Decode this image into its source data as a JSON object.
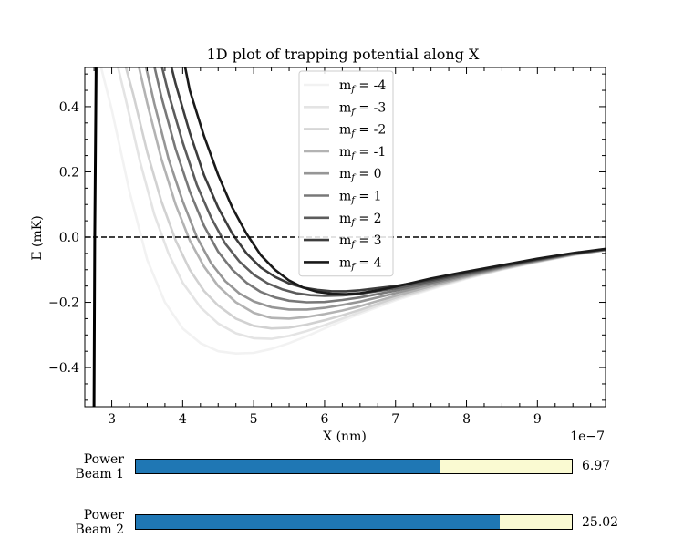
{
  "chart_data": {
    "type": "line",
    "title": "1D plot of trapping potential along X",
    "xlabel": "X (nm)",
    "ylabel": "E (mK)",
    "x_offset_label": "1e−7",
    "xlim": [
      2.62,
      9.96
    ],
    "ylim": [
      -0.52,
      0.52
    ],
    "xticks": [
      "3",
      "4",
      "5",
      "6",
      "7",
      "8",
      "9"
    ],
    "xtick_values": [
      3,
      4,
      5,
      6,
      7,
      8,
      9
    ],
    "yticks": [
      "−0.4",
      "−0.2",
      "0.0",
      "0.2",
      "0.4"
    ],
    "ytick_values": [
      -0.4,
      -0.2,
      0.0,
      0.2,
      0.4
    ],
    "zero_line": {
      "y": 0.0,
      "style": "dashed",
      "color": "#000000"
    },
    "legend_position": "top-center",
    "series": [
      {
        "name": "m$_f$ = -4",
        "label": "m",
        "sub": "f",
        "suffix": " = -4",
        "color": "#f2f2f2",
        "x": [
          2.73,
          2.85,
          3.0,
          3.25,
          3.5,
          3.75,
          4.0,
          4.25,
          4.5,
          4.75,
          5.0,
          5.25,
          5.5,
          5.75,
          6.0,
          6.25,
          6.5,
          7.0,
          7.5,
          8.0,
          8.5,
          9.0,
          9.5,
          9.96
        ],
        "y": [
          0.6,
          0.52,
          0.39,
          0.14,
          -0.07,
          -0.2,
          -0.28,
          -0.325,
          -0.35,
          -0.357,
          -0.355,
          -0.343,
          -0.325,
          -0.304,
          -0.28,
          -0.257,
          -0.235,
          -0.194,
          -0.16,
          -0.128,
          -0.1,
          -0.077,
          -0.056,
          -0.04
        ]
      },
      {
        "name": "m$_f$ = -3",
        "label": "m",
        "sub": "f",
        "suffix": " = -3",
        "color": "#e4e4e4",
        "x": [
          2.73,
          3.0,
          3.2,
          3.4,
          3.6,
          3.8,
          4.0,
          4.25,
          4.5,
          4.75,
          5.0,
          5.25,
          5.5,
          5.75,
          6.0,
          6.25,
          6.5,
          7.0,
          7.5,
          8.0,
          8.5,
          9.0,
          9.5,
          9.96
        ],
        "y": [
          0.6,
          0.6,
          0.42,
          0.23,
          0.07,
          -0.05,
          -0.14,
          -0.215,
          -0.265,
          -0.295,
          -0.31,
          -0.312,
          -0.303,
          -0.288,
          -0.27,
          -0.25,
          -0.23,
          -0.19,
          -0.157,
          -0.126,
          -0.099,
          -0.076,
          -0.055,
          -0.04
        ]
      },
      {
        "name": "m$_f$ = -2",
        "label": "m",
        "sub": "f",
        "suffix": " = -2",
        "color": "#d1d1d1",
        "x": [
          2.73,
          3.1,
          3.3,
          3.5,
          3.7,
          3.9,
          4.1,
          4.3,
          4.5,
          4.75,
          5.0,
          5.25,
          5.5,
          5.75,
          6.0,
          6.25,
          6.5,
          7.0,
          7.5,
          8.0,
          8.5,
          9.0,
          9.5,
          9.96
        ],
        "y": [
          0.6,
          0.6,
          0.44,
          0.26,
          0.11,
          -0.01,
          -0.1,
          -0.165,
          -0.21,
          -0.25,
          -0.272,
          -0.28,
          -0.278,
          -0.268,
          -0.255,
          -0.24,
          -0.223,
          -0.186,
          -0.154,
          -0.124,
          -0.098,
          -0.075,
          -0.054,
          -0.04
        ]
      },
      {
        "name": "m$_f$ = -1",
        "label": "m",
        "sub": "f",
        "suffix": " = -1",
        "color": "#b3b3b3",
        "x": [
          2.73,
          3.3,
          3.5,
          3.7,
          3.9,
          4.1,
          4.3,
          4.5,
          4.75,
          5.0,
          5.25,
          5.5,
          5.75,
          6.0,
          6.25,
          6.5,
          7.0,
          7.5,
          8.0,
          8.5,
          9.0,
          9.5,
          9.96
        ],
        "y": [
          0.6,
          0.6,
          0.41,
          0.24,
          0.1,
          -0.01,
          -0.09,
          -0.15,
          -0.2,
          -0.232,
          -0.248,
          -0.25,
          -0.245,
          -0.236,
          -0.225,
          -0.212,
          -0.18,
          -0.15,
          -0.122,
          -0.096,
          -0.074,
          -0.054,
          -0.04
        ]
      },
      {
        "name": "m$_f$ = 0",
        "label": "m",
        "sub": "f",
        "suffix": " = 0",
        "color": "#969696",
        "x": [
          2.73,
          3.4,
          3.6,
          3.8,
          4.0,
          4.2,
          4.4,
          4.6,
          4.8,
          5.0,
          5.25,
          5.5,
          5.75,
          6.0,
          6.25,
          6.5,
          7.0,
          7.5,
          8.0,
          8.5,
          9.0,
          9.5,
          9.96
        ],
        "y": [
          0.6,
          0.6,
          0.41,
          0.24,
          0.11,
          0.0,
          -0.08,
          -0.135,
          -0.173,
          -0.197,
          -0.215,
          -0.222,
          -0.222,
          -0.217,
          -0.208,
          -0.198,
          -0.172,
          -0.145,
          -0.119,
          -0.094,
          -0.073,
          -0.053,
          -0.039
        ]
      },
      {
        "name": "m$_f$ = 1",
        "label": "m",
        "sub": "f",
        "suffix": " = 1",
        "color": "#787878",
        "x": [
          2.73,
          3.52,
          3.7,
          3.9,
          4.1,
          4.3,
          4.5,
          4.7,
          4.9,
          5.1,
          5.3,
          5.5,
          5.75,
          6.0,
          6.25,
          6.5,
          7.0,
          7.5,
          8.0,
          8.5,
          9.0,
          9.5,
          9.96
        ],
        "y": [
          0.6,
          0.6,
          0.43,
          0.27,
          0.14,
          0.035,
          -0.045,
          -0.1,
          -0.14,
          -0.168,
          -0.185,
          -0.195,
          -0.2,
          -0.199,
          -0.193,
          -0.185,
          -0.164,
          -0.14,
          -0.116,
          -0.092,
          -0.071,
          -0.052,
          -0.039
        ]
      },
      {
        "name": "m$_f$ = 2",
        "label": "m",
        "sub": "f",
        "suffix": " = 2",
        "color": "#5c5c5c",
        "x": [
          2.73,
          3.62,
          3.8,
          4.0,
          4.2,
          4.4,
          4.6,
          4.8,
          5.0,
          5.2,
          5.4,
          5.6,
          5.8,
          6.0,
          6.25,
          6.5,
          7.0,
          7.5,
          8.0,
          8.5,
          9.0,
          9.5,
          9.96
        ],
        "y": [
          0.6,
          0.6,
          0.44,
          0.29,
          0.16,
          0.06,
          -0.02,
          -0.075,
          -0.115,
          -0.142,
          -0.16,
          -0.172,
          -0.178,
          -0.18,
          -0.179,
          -0.174,
          -0.157,
          -0.135,
          -0.112,
          -0.09,
          -0.07,
          -0.051,
          -0.038
        ]
      },
      {
        "name": "m$_f$ = 3",
        "label": "m",
        "sub": "f",
        "suffix": " = 3",
        "color": "#3d3d3d",
        "x": [
          2.73,
          3.75,
          3.9,
          4.1,
          4.3,
          4.5,
          4.7,
          4.9,
          5.1,
          5.3,
          5.5,
          5.7,
          5.9,
          6.1,
          6.3,
          6.5,
          7.0,
          7.5,
          8.0,
          8.5,
          9.0,
          9.5,
          9.96
        ],
        "y": [
          0.6,
          0.6,
          0.47,
          0.32,
          0.19,
          0.09,
          0.01,
          -0.05,
          -0.093,
          -0.122,
          -0.142,
          -0.155,
          -0.162,
          -0.166,
          -0.166,
          -0.163,
          -0.15,
          -0.131,
          -0.109,
          -0.088,
          -0.068,
          -0.05,
          -0.037
        ]
      },
      {
        "name": "m$_f$ = 4",
        "label": "m",
        "sub": "f",
        "suffix": " = 4",
        "color": "#1a1a1a",
        "x": [
          2.73,
          3.98,
          4.1,
          4.3,
          4.5,
          4.7,
          4.9,
          5.1,
          5.3,
          5.5,
          5.7,
          5.9,
          6.1,
          6.3,
          6.5,
          6.75,
          7.0,
          7.5,
          8.0,
          8.5,
          9.0,
          9.5,
          9.96
        ],
        "y": [
          0.6,
          0.58,
          0.45,
          0.31,
          0.19,
          0.09,
          0.01,
          -0.055,
          -0.1,
          -0.133,
          -0.155,
          -0.168,
          -0.174,
          -0.175,
          -0.172,
          -0.163,
          -0.152,
          -0.127,
          -0.106,
          -0.086,
          -0.066,
          -0.049,
          -0.036
        ]
      }
    ],
    "wall": {
      "color": "#000000",
      "x": [
        2.75,
        2.76,
        2.78
      ],
      "y": [
        -0.52,
        0.0,
        0.52
      ]
    }
  },
  "sliders": [
    {
      "label": "Power\nBeam 1",
      "value_text": "6.97",
      "fill_fraction": 0.697,
      "fill_color": "#1f77b4",
      "track_color": "#fafad2"
    },
    {
      "label": "Power\nBeam 2",
      "value_text": "25.02",
      "fill_fraction": 0.834,
      "fill_color": "#1f77b4",
      "track_color": "#fafad2"
    }
  ]
}
